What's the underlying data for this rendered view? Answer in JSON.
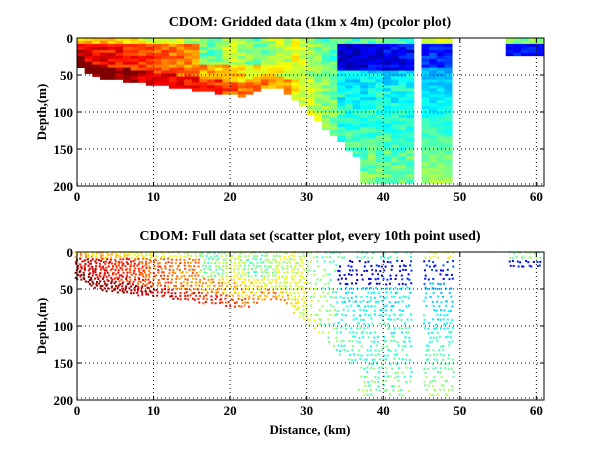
{
  "chart_data": [
    {
      "type": "heatmap",
      "title": "CDOM: Gridded data (1km x 4m) (pcolor plot)",
      "xlabel": "",
      "ylabel": "Depth,(m)",
      "xlim": [
        0,
        61
      ],
      "ylim": [
        200,
        0
      ],
      "xticks": [
        "0",
        "10",
        "20",
        "30",
        "40",
        "50",
        "60"
      ],
      "yticks": [
        "0",
        "50",
        "100",
        "150",
        "200"
      ],
      "grid": true,
      "colormap": "jet",
      "cell_size": {
        "dx_km": 1,
        "dz_m": 4
      },
      "regions": [
        {
          "x_range": [
            0,
            3
          ],
          "depth_max": 40,
          "value": "high (dark red)"
        },
        {
          "x_range": [
            3,
            10
          ],
          "depth_max": 55,
          "value": "high (red-orange)"
        },
        {
          "x_range": [
            10,
            25
          ],
          "depth_max": 75,
          "value": "medium-high (orange-yellow)"
        },
        {
          "x_range": [
            25,
            36
          ],
          "depth_max": 160,
          "value": "medium (yellow-green)"
        },
        {
          "x_range": [
            36,
            44
          ],
          "depth_max": 195,
          "value": "low near surface (dark blue), medium at depth (cyan)"
        },
        {
          "x_range": [
            45.5,
            49.5
          ],
          "depth_max": 195,
          "value": "low near surface (blue), cyan-green at depth"
        },
        {
          "x_range": [
            56.5,
            61
          ],
          "depth_max": 22,
          "value": "green near surface, dark blue below"
        }
      ]
    },
    {
      "type": "scatter",
      "title": "CDOM: Full data set (scatter plot, every 10th point used)",
      "xlabel": "Distance, (km)",
      "ylabel": "Depth,(m)",
      "xlim": [
        0,
        61
      ],
      "ylim": [
        200,
        0
      ],
      "xticks": [
        "0",
        "10",
        "20",
        "30",
        "40",
        "50",
        "60"
      ],
      "yticks": [
        "0",
        "50",
        "100",
        "150",
        "200"
      ],
      "grid": true,
      "colormap": "jet",
      "regions": [
        {
          "x_range": [
            0,
            3
          ],
          "depth_max": 40,
          "value": "high (dark red)"
        },
        {
          "x_range": [
            3,
            10
          ],
          "depth_max": 55,
          "value": "high (red-orange)"
        },
        {
          "x_range": [
            10,
            25
          ],
          "depth_max": 75,
          "value": "medium-high (orange-yellow)"
        },
        {
          "x_range": [
            25,
            36
          ],
          "depth_max": 160,
          "value": "medium (yellow-green)"
        },
        {
          "x_range": [
            36,
            44
          ],
          "depth_max": 195,
          "value": "low near surface (dark blue), medium at depth (cyan)"
        },
        {
          "x_range": [
            45.5,
            49.5
          ],
          "depth_max": 195,
          "value": "low near surface (blue), cyan-green at depth"
        },
        {
          "x_range": [
            56.5,
            61
          ],
          "depth_max": 22,
          "value": "green near surface, dark blue below"
        }
      ]
    }
  ]
}
